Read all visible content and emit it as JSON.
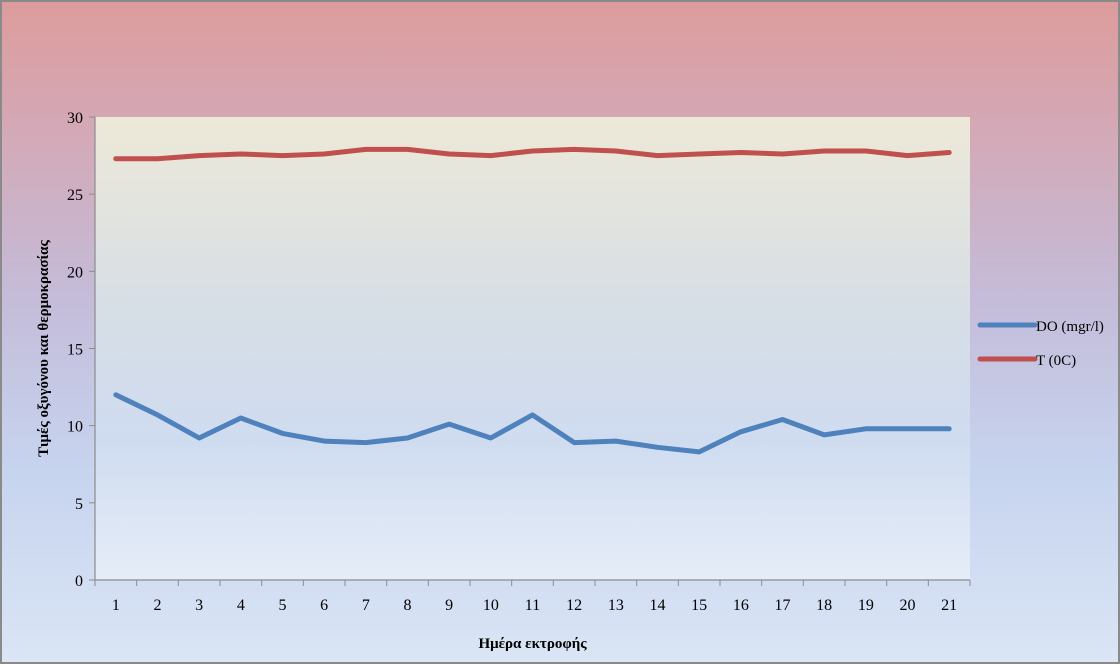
{
  "colors": {
    "do_series": "#4f81bd",
    "t_series": "#c0504d",
    "plot_bg_top": "#ede9d8",
    "plot_bg_bottom": "#e8eef8",
    "axis": "#8c8c8c"
  },
  "chart_data": {
    "type": "line",
    "title": "",
    "xlabel": "Ημέρα εκτροφής",
    "ylabel": "Τιμές οξυγόνου και θερμοκρασίας",
    "x": [
      "1",
      "2",
      "3",
      "4",
      "5",
      "6",
      "7",
      "8",
      "9",
      "10",
      "11",
      "12",
      "13",
      "14",
      "15",
      "16",
      "17",
      "18",
      "19",
      "20",
      "21"
    ],
    "ylim": [
      0,
      30
    ],
    "yticks": [
      "0",
      "5",
      "10",
      "15",
      "20",
      "25",
      "30"
    ],
    "grid": false,
    "legend_position": "right",
    "series": [
      {
        "name": "DO (mgr/l)",
        "color": "#4f81bd",
        "values": [
          12.0,
          10.7,
          9.2,
          10.5,
          9.5,
          9.0,
          8.9,
          9.2,
          10.1,
          9.2,
          10.7,
          8.9,
          9.0,
          8.6,
          8.3,
          9.6,
          10.4,
          9.4,
          9.8,
          9.8,
          9.8
        ]
      },
      {
        "name": "T (0C)",
        "color": "#c0504d",
        "values": [
          27.3,
          27.3,
          27.5,
          27.6,
          27.5,
          27.6,
          27.9,
          27.9,
          27.6,
          27.5,
          27.8,
          27.9,
          27.8,
          27.5,
          27.6,
          27.7,
          27.6,
          27.8,
          27.8,
          27.5,
          27.7
        ]
      }
    ]
  }
}
